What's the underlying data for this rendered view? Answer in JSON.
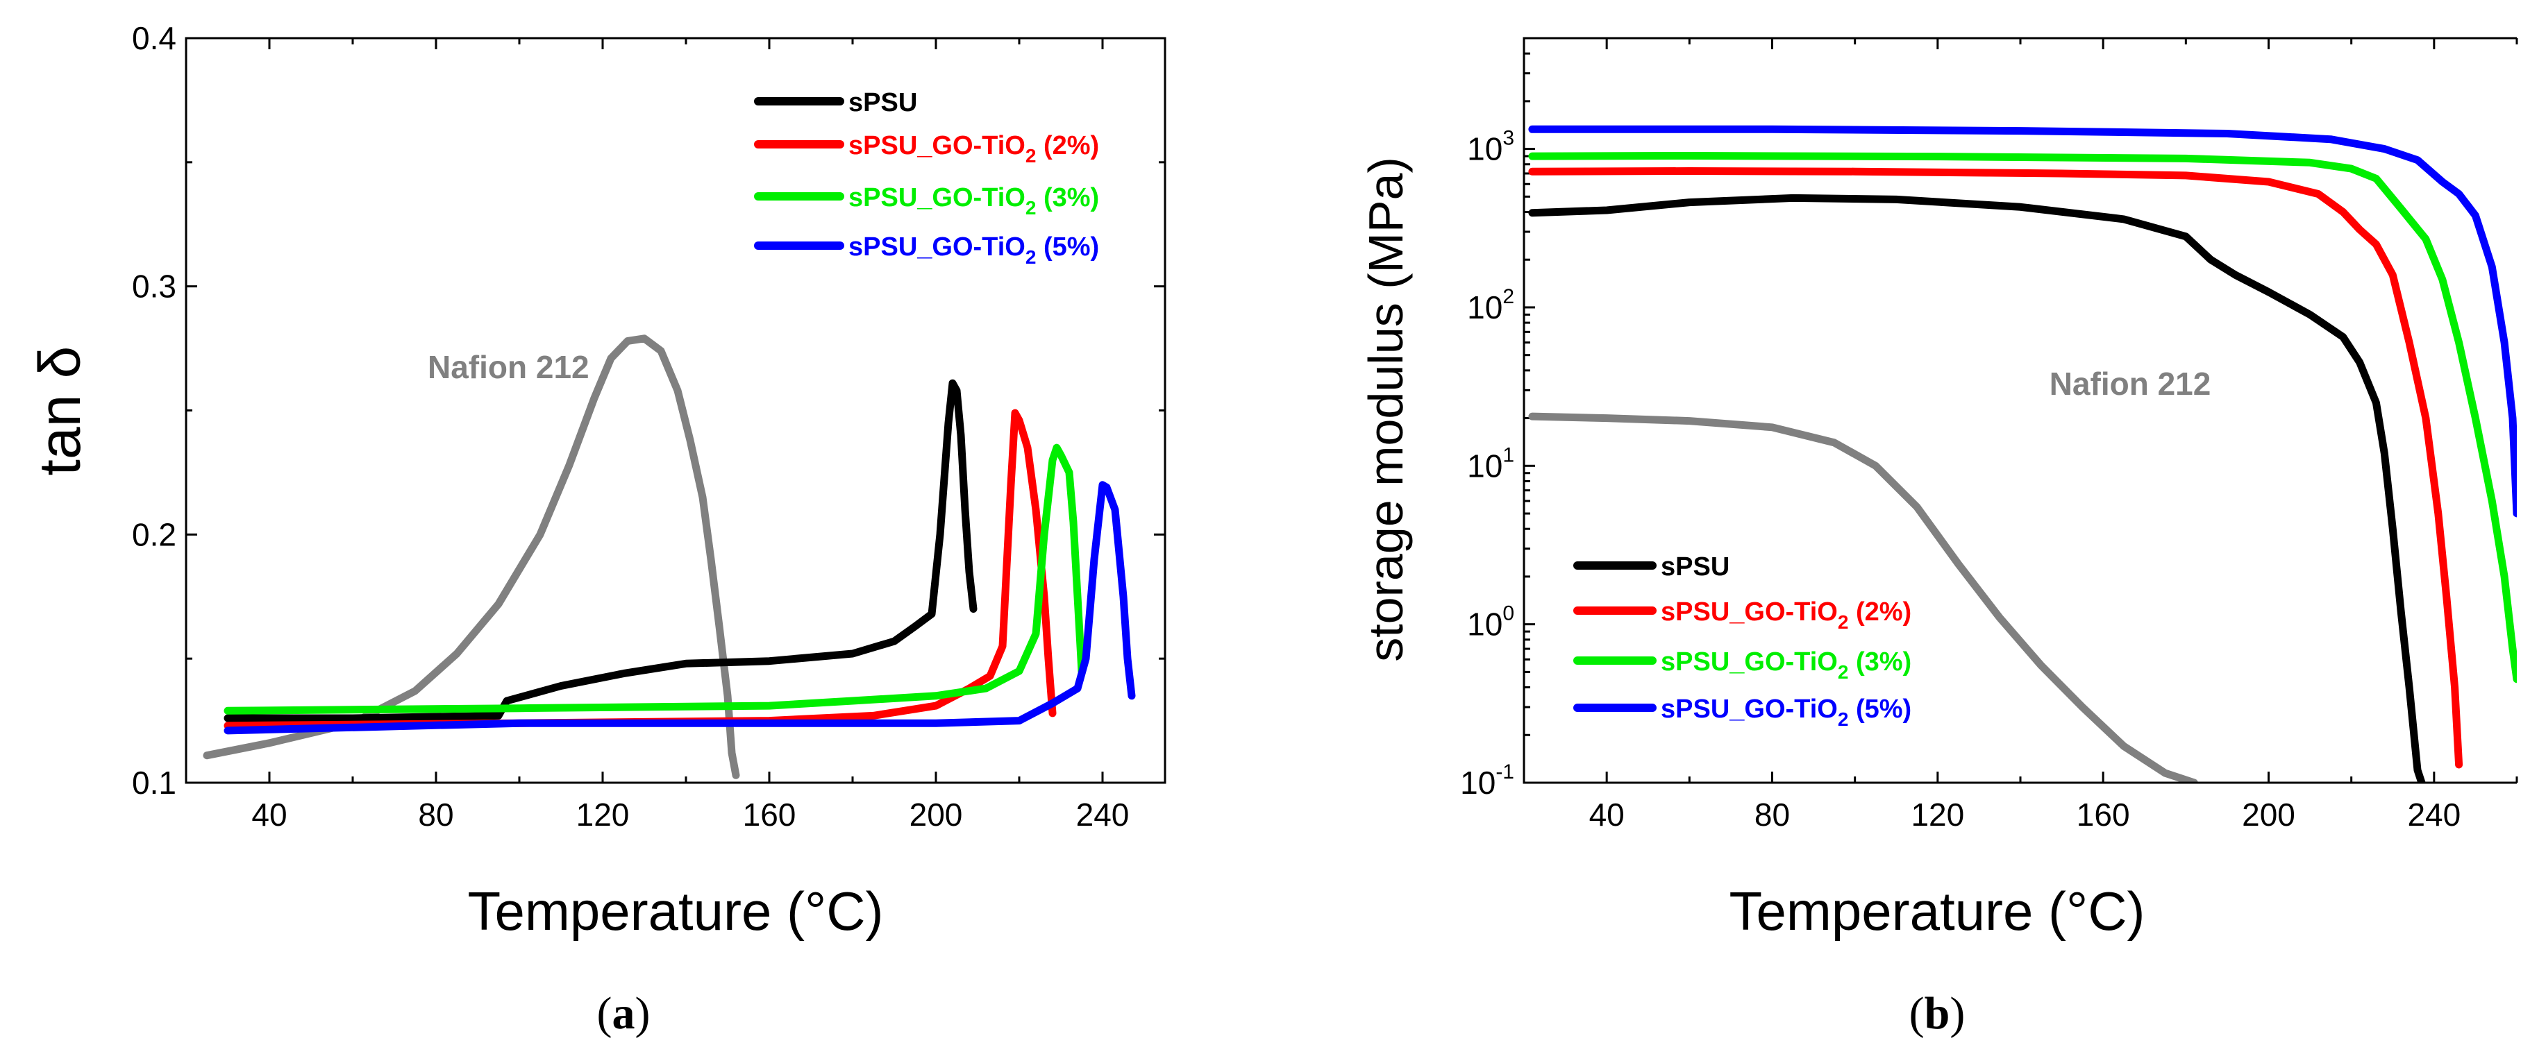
{
  "chart_data": [
    {
      "type": "line",
      "panel_label": {
        "open": "(",
        "letter": "a",
        "close": ")"
      },
      "xlabel": "Temperature (°C)",
      "ylabel": "tan δ",
      "xlim": [
        20,
        255
      ],
      "ylim": [
        0.1,
        0.4
      ],
      "xscale": "linear",
      "yscale": "linear",
      "x_ticks": [
        40,
        80,
        120,
        160,
        200,
        240
      ],
      "y_ticks": [
        0.1,
        0.2,
        0.3,
        0.4
      ],
      "x_tick_labels": [
        "40",
        "80",
        "120",
        "160",
        "200",
        "240"
      ],
      "y_tick_labels": [
        "0.1",
        "0.2",
        "0.3",
        "0.4"
      ],
      "annotation": {
        "text": "Nafion 212",
        "x": 78,
        "y": 0.263,
        "color": "#808080"
      },
      "legend_position": "top-right",
      "series": [
        {
          "name": "Nafion 212",
          "legend": false,
          "color": "#808080",
          "points": [
            [
              25,
              0.111
            ],
            [
              40,
              0.116
            ],
            [
              60,
              0.124
            ],
            [
              75,
              0.137
            ],
            [
              85,
              0.152
            ],
            [
              95,
              0.172
            ],
            [
              105,
              0.2
            ],
            [
              112,
              0.228
            ],
            [
              118,
              0.255
            ],
            [
              122,
              0.271
            ],
            [
              126,
              0.278
            ],
            [
              130,
              0.279
            ],
            [
              134,
              0.274
            ],
            [
              138,
              0.258
            ],
            [
              141,
              0.238
            ],
            [
              144,
              0.215
            ],
            [
              146,
              0.19
            ],
            [
              148,
              0.163
            ],
            [
              150,
              0.135
            ],
            [
              151,
              0.112
            ],
            [
              152,
              0.103
            ]
          ]
        },
        {
          "name": "sPSU",
          "legend": true,
          "legend_label": {
            "base": "sPSU",
            "sub": "",
            "tail": ""
          },
          "color": "#000000",
          "points": [
            [
              30,
              0.126
            ],
            [
              60,
              0.126
            ],
            [
              95,
              0.127
            ],
            [
              97,
              0.133
            ],
            [
              110,
              0.139
            ],
            [
              125,
              0.144
            ],
            [
              140,
              0.148
            ],
            [
              160,
              0.149
            ],
            [
              180,
              0.152
            ],
            [
              190,
              0.157
            ],
            [
              195,
              0.163
            ],
            [
              199,
              0.168
            ],
            [
              201,
              0.2
            ],
            [
              203,
              0.245
            ],
            [
              204,
              0.261
            ],
            [
              205,
              0.258
            ],
            [
              206,
              0.24
            ],
            [
              207,
              0.21
            ],
            [
              208,
              0.185
            ],
            [
              209,
              0.17
            ]
          ]
        },
        {
          "name": "sPSU_GO-TiO2 (2%)",
          "legend": true,
          "legend_label": {
            "base": "sPSU_GO-TiO",
            "sub": "2",
            "tail": " (2%)"
          },
          "color": "#ff0000",
          "points": [
            [
              30,
              0.123
            ],
            [
              100,
              0.124
            ],
            [
              160,
              0.125
            ],
            [
              185,
              0.127
            ],
            [
              200,
              0.131
            ],
            [
              208,
              0.138
            ],
            [
              213,
              0.143
            ],
            [
              216,
              0.155
            ],
            [
              218,
              0.22
            ],
            [
              219,
              0.249
            ],
            [
              220,
              0.246
            ],
            [
              222,
              0.235
            ],
            [
              224,
              0.21
            ],
            [
              226,
              0.175
            ],
            [
              227,
              0.15
            ],
            [
              228,
              0.128
            ]
          ]
        },
        {
          "name": "sPSU_GO-TiO2 (3%)",
          "legend": true,
          "legend_label": {
            "base": "sPSU_GO-TiO",
            "sub": "2",
            "tail": " (3%)"
          },
          "color": "#00ee00",
          "points": [
            [
              30,
              0.129
            ],
            [
              100,
              0.13
            ],
            [
              160,
              0.131
            ],
            [
              180,
              0.133
            ],
            [
              200,
              0.135
            ],
            [
              212,
              0.138
            ],
            [
              220,
              0.145
            ],
            [
              224,
              0.16
            ],
            [
              226,
              0.2
            ],
            [
              228,
              0.23
            ],
            [
              229,
              0.235
            ],
            [
              230,
              0.232
            ],
            [
              232,
              0.225
            ],
            [
              233,
              0.205
            ],
            [
              234,
              0.175
            ],
            [
              235,
              0.145
            ]
          ]
        },
        {
          "name": "sPSU_GO-TiO2 (5%)",
          "legend": true,
          "legend_label": {
            "base": "sPSU_GO-TiO",
            "sub": "2",
            "tail": " (5%)"
          },
          "color": "#0000ff",
          "points": [
            [
              30,
              0.121
            ],
            [
              100,
              0.124
            ],
            [
              160,
              0.124
            ],
            [
              200,
              0.124
            ],
            [
              220,
              0.125
            ],
            [
              228,
              0.132
            ],
            [
              234,
              0.138
            ],
            [
              236,
              0.15
            ],
            [
              238,
              0.19
            ],
            [
              240,
              0.22
            ],
            [
              241,
              0.219
            ],
            [
              243,
              0.21
            ],
            [
              245,
              0.175
            ],
            [
              246,
              0.15
            ],
            [
              247,
              0.135
            ]
          ]
        }
      ]
    },
    {
      "type": "line",
      "panel_label": {
        "open": "(",
        "letter": "b",
        "close": ")"
      },
      "xlabel": "Temperature (°C)",
      "ylabel": "storage modulus  (MPa)",
      "xlim": [
        20,
        260
      ],
      "ylim": [
        0.1,
        5000
      ],
      "xscale": "linear",
      "yscale": "log",
      "x_ticks": [
        40,
        80,
        120,
        160,
        200,
        240
      ],
      "y_ticks": [
        0.1,
        1,
        10,
        100,
        1000
      ],
      "x_tick_labels": [
        "40",
        "80",
        "120",
        "160",
        "200",
        "240"
      ],
      "y_tick_labels": [
        {
          "base": "10",
          "exp": "-1"
        },
        {
          "base": "10",
          "exp": "0"
        },
        {
          "base": "10",
          "exp": "1"
        },
        {
          "base": "10",
          "exp": "2"
        },
        {
          "base": "10",
          "exp": "3"
        }
      ],
      "annotation": {
        "text": "Nafion 212",
        "x": 147,
        "y": 28,
        "color": "#808080"
      },
      "legend_position": "bottom-left",
      "series": [
        {
          "name": "Nafion 212",
          "legend": false,
          "color": "#808080",
          "points": [
            [
              22,
              20.5
            ],
            [
              40,
              20
            ],
            [
              60,
              19.2
            ],
            [
              80,
              17.5
            ],
            [
              95,
              14
            ],
            [
              105,
              10
            ],
            [
              115,
              5.5
            ],
            [
              125,
              2.4
            ],
            [
              135,
              1.1
            ],
            [
              145,
              0.55
            ],
            [
              155,
              0.3
            ],
            [
              165,
              0.17
            ],
            [
              175,
              0.115
            ],
            [
              182,
              0.1
            ]
          ]
        },
        {
          "name": "sPSU",
          "legend": true,
          "legend_label": {
            "base": "sPSU",
            "sub": "",
            "tail": ""
          },
          "color": "#000000",
          "points": [
            [
              22,
              395
            ],
            [
              40,
              410
            ],
            [
              60,
              460
            ],
            [
              85,
              490
            ],
            [
              110,
              480
            ],
            [
              140,
              430
            ],
            [
              165,
              360
            ],
            [
              180,
              280
            ],
            [
              186,
              200
            ],
            [
              192,
              160
            ],
            [
              200,
              125
            ],
            [
              210,
              90
            ],
            [
              218,
              65
            ],
            [
              222,
              45
            ],
            [
              226,
              25
            ],
            [
              228,
              12
            ],
            [
              230,
              4
            ],
            [
              232,
              1.2
            ],
            [
              234,
              0.4
            ],
            [
              236,
              0.12
            ],
            [
              237,
              0.1
            ]
          ]
        },
        {
          "name": "sPSU_GO-TiO2 (2%)",
          "legend": true,
          "legend_label": {
            "base": "sPSU_GO-TiO",
            "sub": "2",
            "tail": " (2%)"
          },
          "color": "#ff0000",
          "points": [
            [
              22,
              720
            ],
            [
              60,
              725
            ],
            [
              100,
              720
            ],
            [
              150,
              700
            ],
            [
              180,
              680
            ],
            [
              200,
              620
            ],
            [
              212,
              520
            ],
            [
              218,
              400
            ],
            [
              222,
              310
            ],
            [
              226,
              250
            ],
            [
              230,
              160
            ],
            [
              234,
              60
            ],
            [
              238,
              20
            ],
            [
              241,
              5
            ],
            [
              243,
              1.5
            ],
            [
              245,
              0.4
            ],
            [
              246,
              0.13
            ]
          ]
        },
        {
          "name": "sPSU_GO-TiO2 (3%)",
          "legend": true,
          "legend_label": {
            "base": "sPSU_GO-TiO",
            "sub": "2",
            "tail": " (3%)"
          },
          "color": "#00ee00",
          "points": [
            [
              22,
              900
            ],
            [
              60,
              905
            ],
            [
              120,
              895
            ],
            [
              180,
              870
            ],
            [
              210,
              820
            ],
            [
              220,
              750
            ],
            [
              226,
              650
            ],
            [
              232,
              420
            ],
            [
              238,
              270
            ],
            [
              242,
              150
            ],
            [
              246,
              60
            ],
            [
              250,
              20
            ],
            [
              254,
              6
            ],
            [
              257,
              2
            ],
            [
              259,
              0.7
            ],
            [
              260,
              0.45
            ]
          ]
        },
        {
          "name": "sPSU_GO-TiO2 (5%)",
          "legend": true,
          "legend_label": {
            "base": "sPSU_GO-TiO",
            "sub": "2",
            "tail": " (5%)"
          },
          "color": "#0000ff",
          "points": [
            [
              22,
              1330
            ],
            [
              80,
              1330
            ],
            [
              140,
              1300
            ],
            [
              190,
              1250
            ],
            [
              215,
              1150
            ],
            [
              228,
              1000
            ],
            [
              236,
              850
            ],
            [
              242,
              620
            ],
            [
              246,
              520
            ],
            [
              250,
              380
            ],
            [
              254,
              180
            ],
            [
              257,
              60
            ],
            [
              259,
              20
            ],
            [
              260,
              5
            ]
          ]
        }
      ]
    }
  ]
}
